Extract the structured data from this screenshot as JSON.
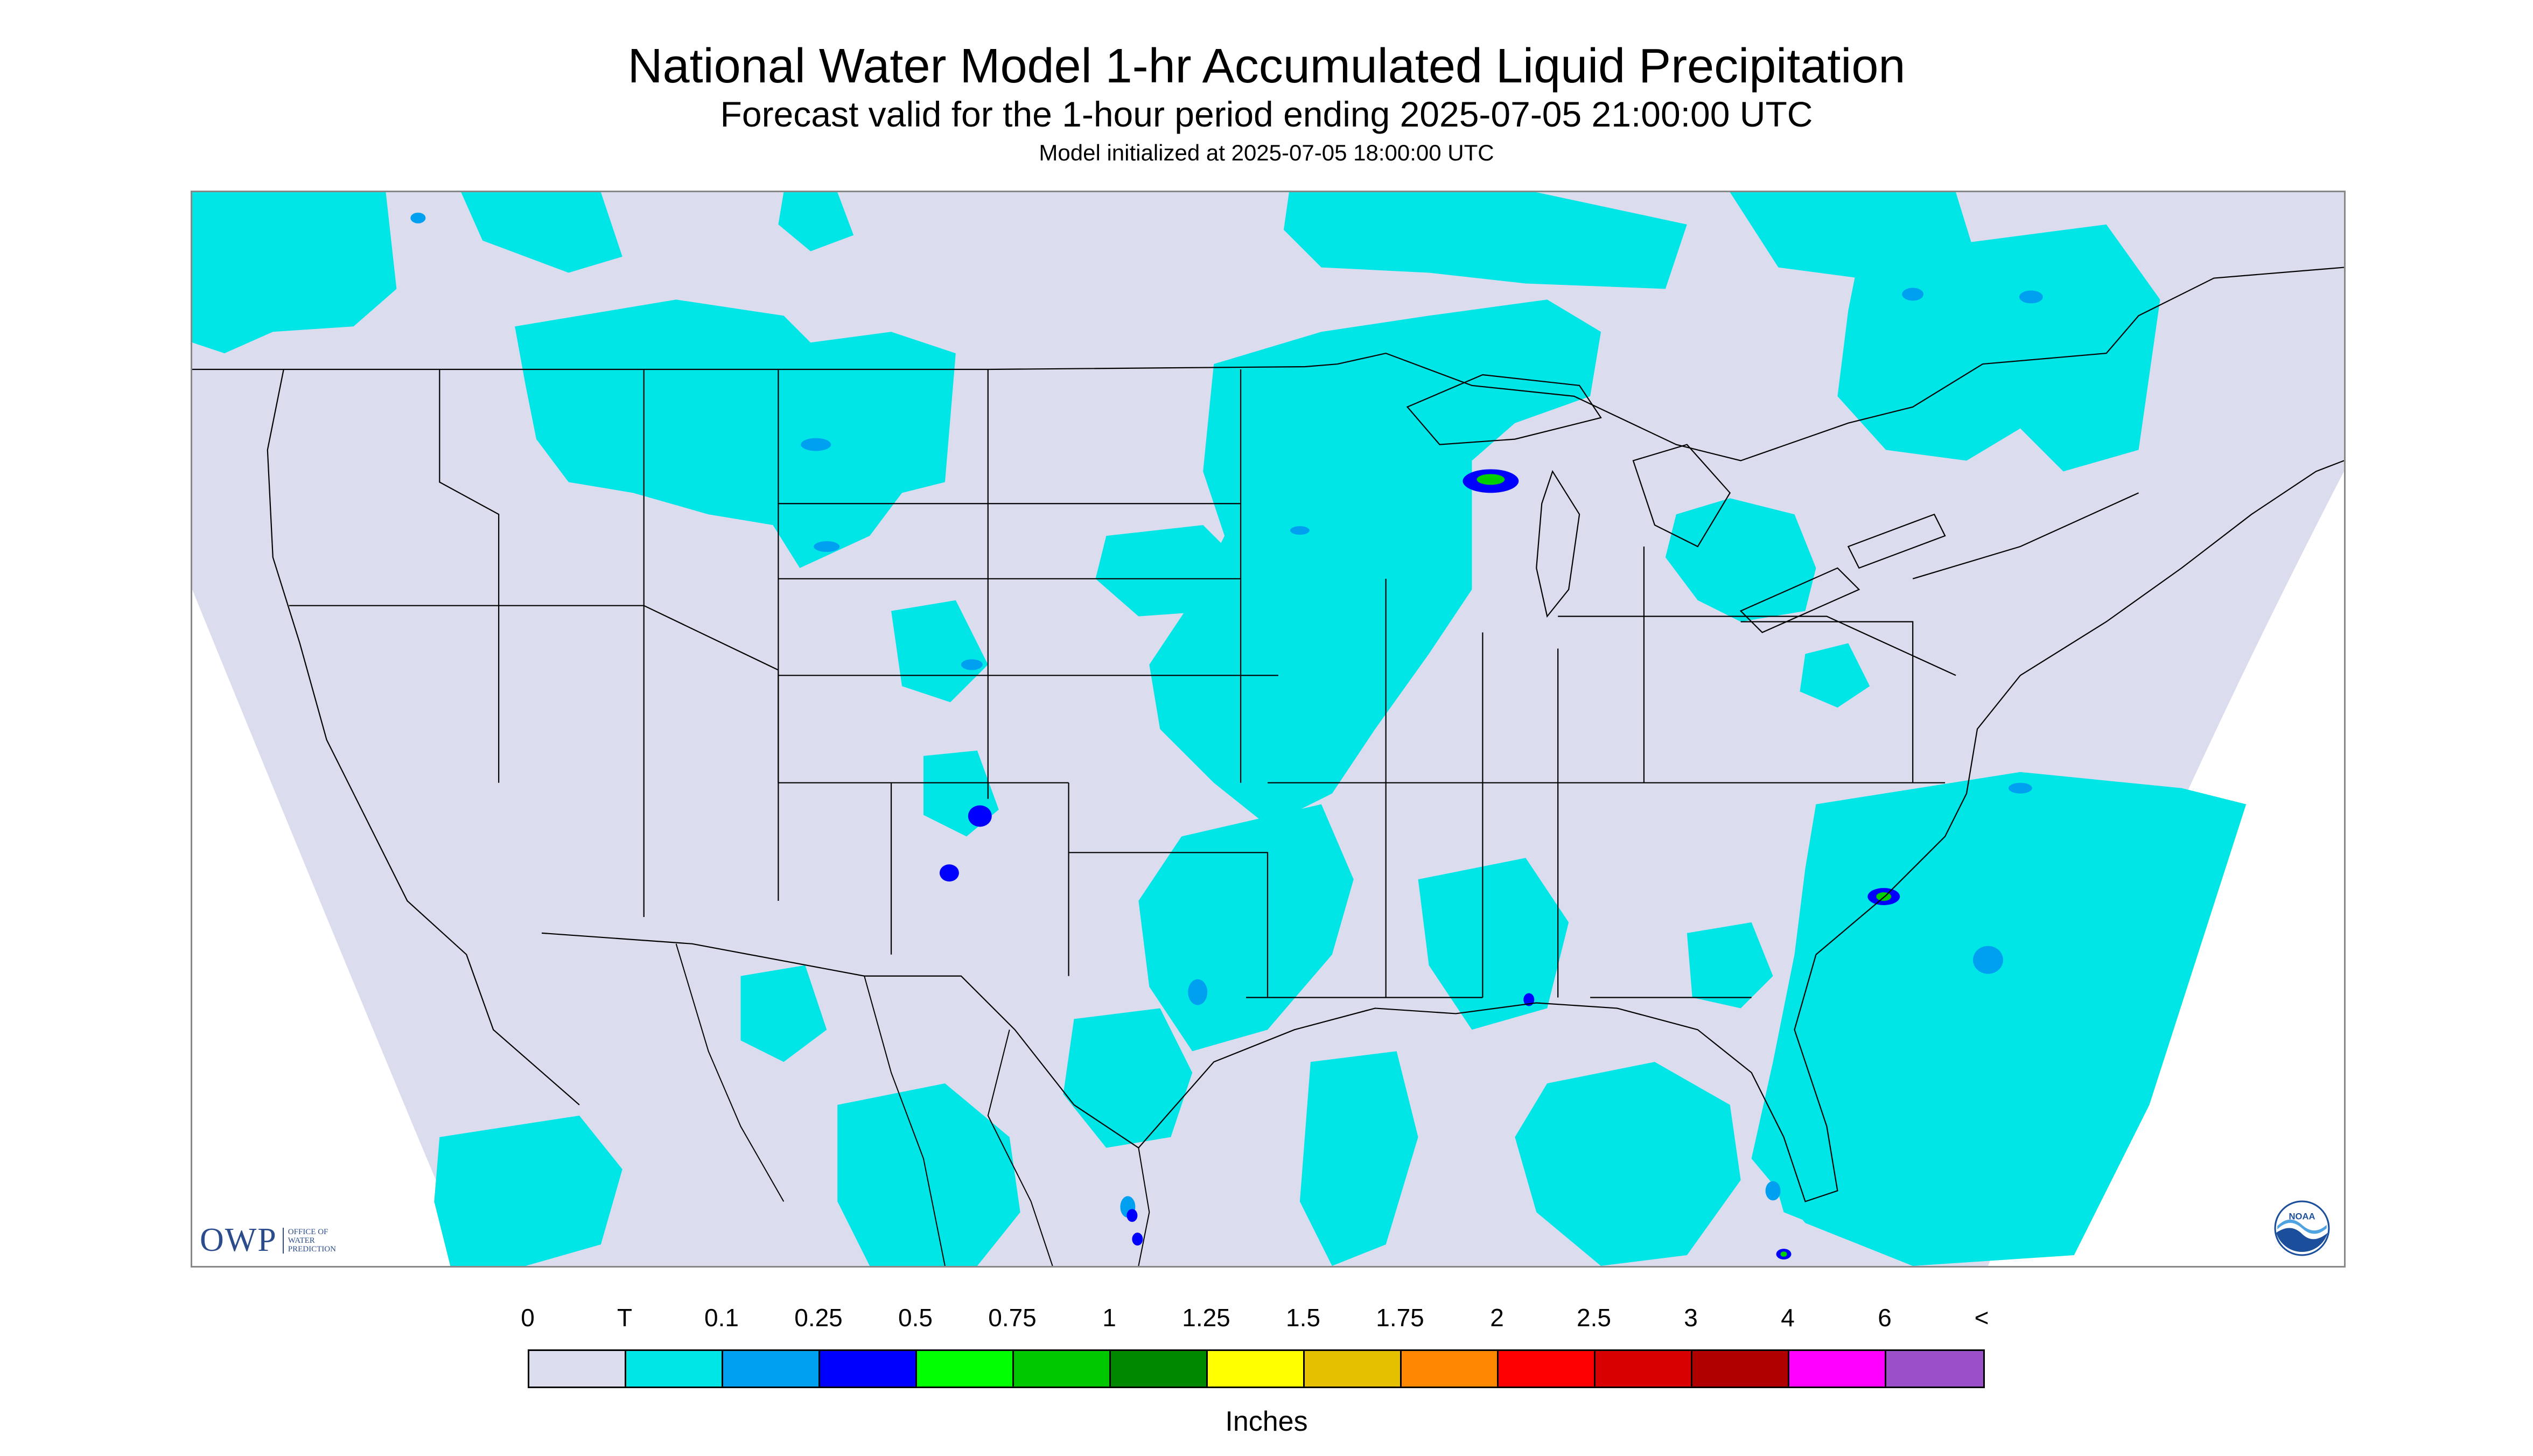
{
  "header": {
    "title": "National Water Model 1-hr Accumulated Liquid Precipitation",
    "subtitle": "Forecast valid for the 1-hour period ending 2025-07-05 21:00:00 UTC",
    "init_line": "Model initialized at 2025-07-05 18:00:00 UTC"
  },
  "map": {
    "background_color": "#dcdcef",
    "precip_colors": {
      "trace": "#00e5e5",
      "light": "#00a0f0",
      "moderate": "#0000ff",
      "heavy": "#00ff00",
      "heavier": "#00c000",
      "very_heavy": "#ffff00"
    },
    "logos": {
      "owp_mark": "OWP",
      "owp_text_line1": "Office of",
      "owp_text_line2": "Water",
      "owp_text_line3": "Prediction",
      "noaa_text": "NOAA",
      "noaa_icon": "noaa-logo-icon"
    }
  },
  "legend": {
    "labels": [
      "0",
      "T",
      "0.1",
      "0.25",
      "0.5",
      "0.75",
      "1",
      "1.25",
      "1.5",
      "1.75",
      "2",
      "2.5",
      "3",
      "4",
      "6",
      "<"
    ],
    "colors": [
      "#dcdcef",
      "#00e5e5",
      "#00a0f0",
      "#0000ff",
      "#00ff00",
      "#00c800",
      "#008800",
      "#ffff00",
      "#e5c000",
      "#ff8800",
      "#ff0000",
      "#d80000",
      "#b00000",
      "#ff00ff",
      "#9950c8"
    ],
    "units": "Inches"
  }
}
